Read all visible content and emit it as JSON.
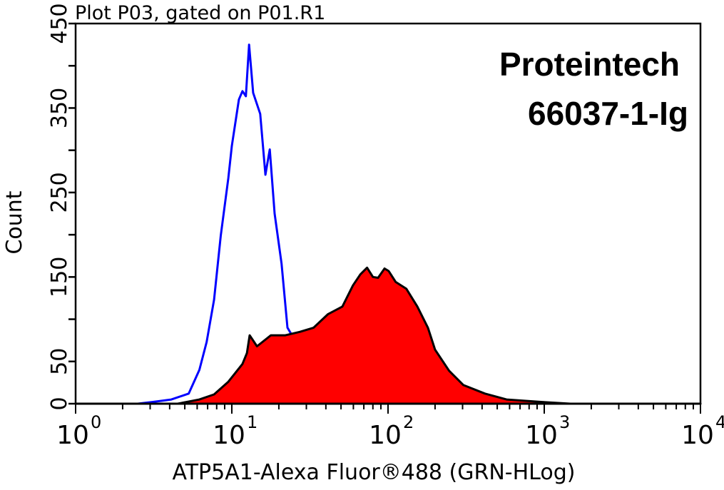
{
  "chart_data": {
    "type": "area",
    "title": "Plot P03, gated on P01.R1",
    "xlabel": "ATP5A1-Alexa Fluor®488 (GRN-HLog)",
    "ylabel": "Count",
    "xscale": "log",
    "xlim": [
      1,
      10000
    ],
    "ylim": [
      0,
      450
    ],
    "x_tick_labels": [
      {
        "base": "10",
        "exp": "0",
        "value": 1
      },
      {
        "base": "10",
        "exp": "1",
        "value": 10
      },
      {
        "base": "10",
        "exp": "2",
        "value": 100
      },
      {
        "base": "10",
        "exp": "3",
        "value": 1000
      },
      {
        "base": "10",
        "exp": "4",
        "value": 10000
      }
    ],
    "y_tick_labels": [
      "0",
      "50",
      "150",
      "250",
      "350",
      "450"
    ],
    "y_tick_values": [
      0,
      50,
      150,
      250,
      350,
      450
    ],
    "y_minor_step": 50,
    "grid": false,
    "annotations": [
      "Proteintech",
      "66037-1-Ig"
    ],
    "series": [
      {
        "style": "outline",
        "color": "#0000ff",
        "x": [
          1,
          2.5,
          3.1,
          4.1,
          5.3,
          6.2,
          6.9,
          7.7,
          8.5,
          9.5,
          10,
          11.1,
          11.7,
          12.3,
          12.9,
          13.7,
          15.2,
          16.4,
          17.5,
          18.8,
          20.8,
          22.7,
          23.9,
          27,
          32,
          40,
          10000
        ],
        "y": [
          0,
          0,
          2,
          5,
          12,
          40,
          73,
          123,
          199,
          267,
          305,
          360,
          370,
          364,
          425,
          368,
          343,
          271,
          301,
          225,
          166,
          90,
          83,
          45,
          15,
          0,
          0
        ]
      },
      {
        "style": "filled",
        "color": "#ff0000",
        "stroke": "#000000",
        "x": [
          1,
          4.5,
          6.2,
          7.7,
          9.5,
          11.7,
          12.5,
          13.0,
          14.5,
          17.8,
          22.0,
          27.2,
          33.4,
          41.3,
          51,
          59.6,
          66.4,
          73.4,
          80,
          86.3,
          95,
          101,
          112,
          131,
          154,
          180,
          200,
          246,
          304,
          417,
          574,
          971,
          1470,
          10000
        ],
        "y": [
          0,
          0,
          5,
          11,
          26,
          47,
          60,
          81,
          68,
          81,
          81,
          85,
          90,
          106,
          115,
          140,
          153,
          161,
          150,
          149,
          160,
          157,
          144,
          136,
          115,
          90,
          64,
          39,
          22,
          12,
          5,
          2,
          0,
          0
        ]
      }
    ]
  }
}
